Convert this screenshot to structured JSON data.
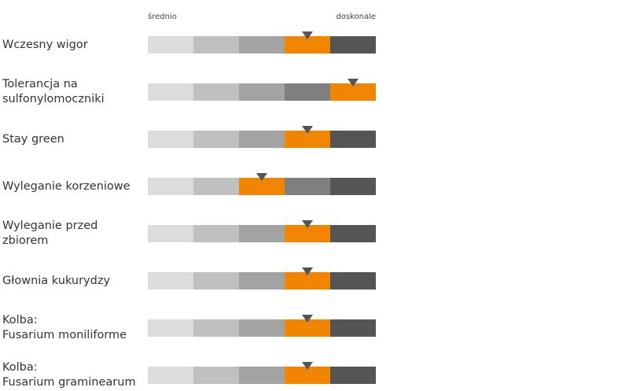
{
  "chart_data": {
    "type": "rating-scale",
    "scale_labels": {
      "low": "średnio",
      "high": "doskonale"
    },
    "levels": 5,
    "segment_colors": [
      "#dcdcdc",
      "#c0c0c0",
      "#a3a3a3",
      "#7f7f7f",
      "#555555"
    ],
    "highlight_color": "#f28500",
    "marker_color": "#555555",
    "traits": [
      {
        "label_lines": [
          "Wczesny wigor"
        ],
        "rating": 4,
        "marker_pos": 0.5
      },
      {
        "label_lines": [
          "Tolerancja na",
          "sulfonylomoczniki"
        ],
        "rating": 5,
        "marker_pos": 0.5
      },
      {
        "label_lines": [
          "Stay green"
        ],
        "rating": 4,
        "marker_pos": 0.5
      },
      {
        "label_lines": [
          "Wyleganie korzeniowe"
        ],
        "rating": 3,
        "marker_pos": 0.5
      },
      {
        "label_lines": [
          "Wyleganie przed",
          "zbiorem"
        ],
        "rating": 4,
        "marker_pos": 0.5
      },
      {
        "label_lines": [
          "Głownia kukurydzy"
        ],
        "rating": 4,
        "marker_pos": 0.5
      },
      {
        "label_lines": [
          "Kolba:",
          "Fusarium moniliforme"
        ],
        "rating": 4,
        "marker_pos": 0.5
      },
      {
        "label_lines": [
          "Kolba:",
          "Fusarium graminearum"
        ],
        "rating": 4,
        "marker_pos": 0.5
      }
    ]
  }
}
